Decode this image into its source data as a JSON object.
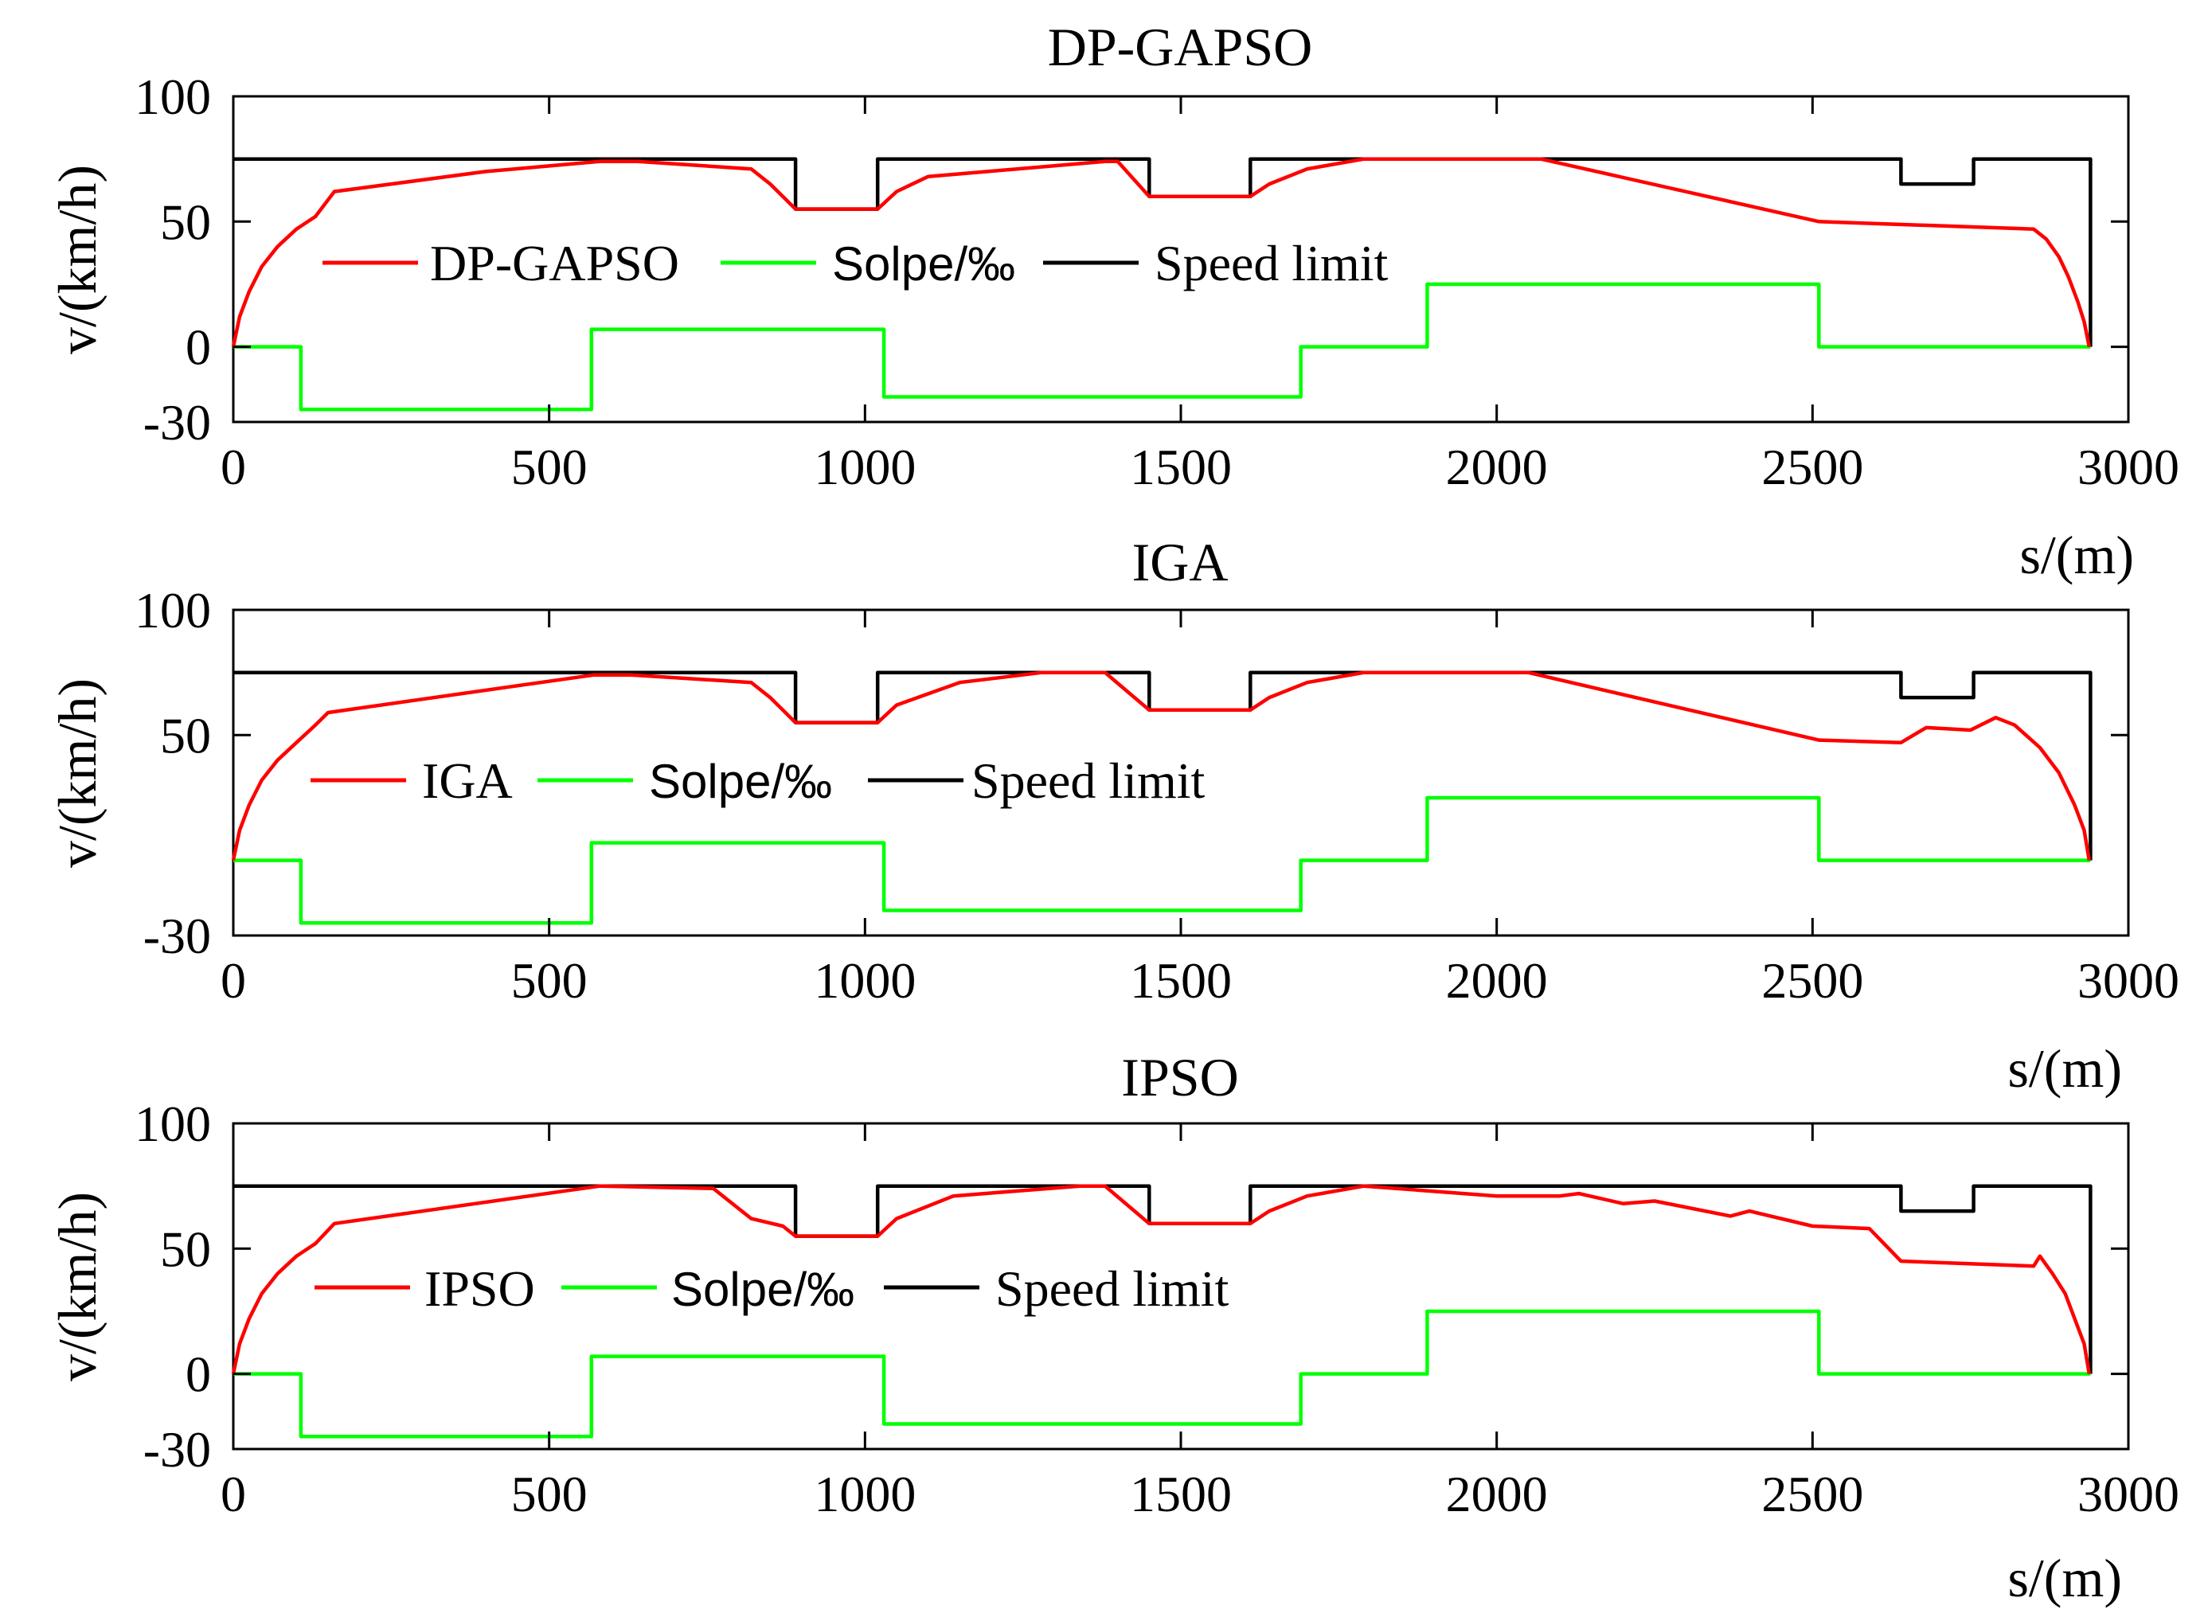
{
  "colors": {
    "speed": "#ff0000",
    "slope": "#00ff00",
    "limit": "#000000",
    "axis": "#000000"
  },
  "chart_data": [
    {
      "type": "line",
      "title": "DP-GAPSO",
      "xlabel": "s/(m)",
      "ylabel": "v/(km/h)",
      "xlim": [
        0,
        3000
      ],
      "ylim": [
        -30,
        100
      ],
      "xticks": [
        "0",
        "500",
        "1000",
        "1500",
        "2000",
        "2500",
        "3000"
      ],
      "yticks": [
        {
          "value": 100,
          "label": "100"
        },
        {
          "value": 50,
          "label": "50"
        },
        {
          "value": 0,
          "label": "0"
        },
        {
          "value": -30,
          "label": "-30"
        }
      ],
      "legend": {
        "placement": "center-left",
        "entries": [
          "DP-GAPSO",
          "Solpe/‰",
          "Speed limit"
        ]
      },
      "series": [
        {
          "name": "DP-GAPSO",
          "role": "speed",
          "x": [
            0,
            10,
            25,
            45,
            70,
            100,
            130,
            160,
            400,
            580,
            640,
            820,
            850,
            890,
            1020,
            1050,
            1100,
            1380,
            1400,
            1450,
            1610,
            1640,
            1700,
            1790,
            2070,
            2510,
            2850,
            2870,
            2890,
            2905,
            2920,
            2930,
            2938
          ],
          "y": [
            0,
            12,
            22,
            32,
            40,
            47,
            52,
            62,
            70,
            74,
            74,
            71,
            65,
            55,
            55,
            62,
            68,
            74,
            74,
            60,
            60,
            65,
            71,
            75,
            75,
            50,
            47,
            43,
            36,
            28,
            18,
            10,
            0
          ]
        },
        {
          "name": "Solpe/‰",
          "role": "slope",
          "x": [
            0,
            107,
            107,
            567,
            567,
            1030,
            1030,
            1690,
            1690,
            1890,
            1890,
            2510,
            2510,
            2940
          ],
          "y": [
            0,
            0,
            -25,
            -25,
            7,
            7,
            -20,
            -20,
            0,
            0,
            25,
            25,
            0,
            0
          ]
        },
        {
          "name": "Speed limit",
          "role": "limit",
          "x": [
            0,
            890,
            890,
            1020,
            1020,
            1450,
            1450,
            1610,
            1610,
            2640,
            2640,
            2755,
            2755,
            2940,
            2940
          ],
          "y": [
            75,
            75,
            55,
            55,
            75,
            75,
            60,
            60,
            75,
            75,
            65,
            65,
            75,
            75,
            0
          ]
        }
      ]
    },
    {
      "type": "line",
      "title": "IGA",
      "xlabel": "s/(m)",
      "ylabel": "v/(km/h)",
      "xlim": [
        0,
        3000
      ],
      "ylim": [
        -30,
        100
      ],
      "xticks": [
        "0",
        "500",
        "1000",
        "1500",
        "2000",
        "2500",
        "3000"
      ],
      "yticks": [
        {
          "value": 100,
          "label": "100"
        },
        {
          "value": 50,
          "label": "50"
        },
        {
          "value": -30,
          "label": "-30"
        }
      ],
      "legend": {
        "placement": "center-left",
        "entries": [
          "IGA",
          "Solpe/‰",
          "Speed limit"
        ]
      },
      "series": [
        {
          "name": "IGA",
          "role": "speed",
          "x": [
            0,
            10,
            25,
            45,
            70,
            100,
            130,
            150,
            570,
            630,
            820,
            850,
            890,
            1020,
            1050,
            1150,
            1280,
            1380,
            1450,
            1610,
            1640,
            1700,
            1790,
            2050,
            2510,
            2640,
            2680,
            2750,
            2790,
            2820,
            2860,
            2890,
            2915,
            2930,
            2938
          ],
          "y": [
            0,
            12,
            22,
            32,
            40,
            47,
            54,
            59,
            74,
            74,
            71,
            65,
            55,
            55,
            62,
            71,
            75,
            75,
            60,
            60,
            65,
            71,
            75,
            75,
            48,
            47,
            53,
            52,
            57,
            54,
            45,
            35,
            22,
            12,
            0
          ]
        },
        {
          "name": "Solpe/‰",
          "role": "slope",
          "x": [
            0,
            107,
            107,
            567,
            567,
            1030,
            1030,
            1690,
            1690,
            1890,
            1890,
            2510,
            2510,
            2940
          ],
          "y": [
            0,
            0,
            -25,
            -25,
            7,
            7,
            -20,
            -20,
            0,
            0,
            25,
            25,
            0,
            0
          ]
        },
        {
          "name": "Speed limit",
          "role": "limit",
          "x": [
            0,
            890,
            890,
            1020,
            1020,
            1450,
            1450,
            1610,
            1610,
            2640,
            2640,
            2755,
            2755,
            2940,
            2940
          ],
          "y": [
            75,
            75,
            55,
            55,
            75,
            75,
            60,
            60,
            75,
            75,
            65,
            65,
            75,
            75,
            0
          ]
        }
      ]
    },
    {
      "type": "line",
      "title": "IPSO",
      "xlabel": "s/(m)",
      "ylabel": "v/(km/h)",
      "xlim": [
        0,
        3000
      ],
      "ylim": [
        -30,
        100
      ],
      "xticks": [
        "0",
        "500",
        "1000",
        "1500",
        "2000",
        "2500",
        "3000"
      ],
      "yticks": [
        {
          "value": 100,
          "label": "100"
        },
        {
          "value": 50,
          "label": "50"
        },
        {
          "value": 0,
          "label": "0"
        },
        {
          "value": -30,
          "label": "-30"
        }
      ],
      "legend": {
        "placement": "center-left",
        "entries": [
          "IPSO",
          "Solpe/‰",
          "Speed limit"
        ]
      },
      "series": [
        {
          "name": "IPSO",
          "role": "speed",
          "x": [
            0,
            10,
            25,
            45,
            70,
            100,
            130,
            160,
            580,
            760,
            820,
            870,
            890,
            1020,
            1050,
            1140,
            1340,
            1380,
            1450,
            1610,
            1640,
            1700,
            1790,
            2000,
            2100,
            2130,
            2200,
            2250,
            2370,
            2400,
            2500,
            2590,
            2640,
            2850,
            2860,
            2880,
            2900,
            2915,
            2930,
            2938
          ],
          "y": [
            0,
            12,
            22,
            32,
            40,
            47,
            52,
            60,
            75,
            74,
            62,
            59,
            55,
            55,
            62,
            71,
            75,
            75,
            60,
            60,
            65,
            71,
            75,
            71,
            71,
            72,
            68,
            69,
            63,
            65,
            59,
            58,
            45,
            43,
            47,
            40,
            32,
            22,
            12,
            0
          ]
        },
        {
          "name": "Solpe/‰",
          "role": "slope",
          "x": [
            0,
            107,
            107,
            567,
            567,
            1030,
            1030,
            1690,
            1690,
            1890,
            1890,
            2510,
            2510,
            2940
          ],
          "y": [
            0,
            0,
            -25,
            -25,
            7,
            7,
            -20,
            -20,
            0,
            0,
            25,
            25,
            0,
            0
          ]
        },
        {
          "name": "Speed limit",
          "role": "limit",
          "x": [
            0,
            890,
            890,
            1020,
            1020,
            1450,
            1450,
            1610,
            1610,
            2640,
            2640,
            2755,
            2755,
            2940,
            2940
          ],
          "y": [
            75,
            75,
            55,
            55,
            75,
            75,
            60,
            60,
            75,
            75,
            65,
            65,
            75,
            75,
            0
          ]
        }
      ]
    }
  ]
}
